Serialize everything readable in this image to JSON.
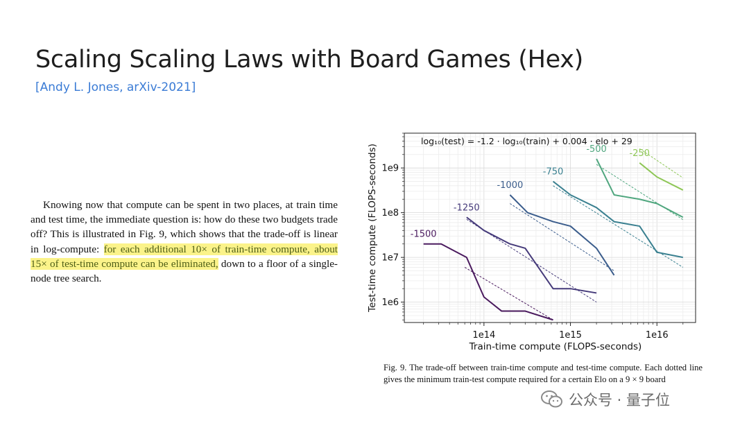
{
  "slide": {
    "title": "Scaling Scaling Laws with Board Games (Hex)",
    "citation": "[Andy L. Jones, arXiv-2021]",
    "paragraph": {
      "before": "Knowing now that compute can be spent in two places, at train time and test time, the immediate question is: how do these two budgets trade off? This is illustrated in Fig. 9, which shows that the trade-off is linear in log-compute: ",
      "highlight": "for each additional 10× of train-time compute, about 15× of test-time compute can be eliminated,",
      "after": " down to a floor of a single-node tree search."
    },
    "caption": "Fig. 9.  The trade-off between train-time compute and test-time compute. Each dotted line gives the minimum train-test compute required for a certain Elo on a 9 × 9 board",
    "watermark": "公众号 · 量子位"
  },
  "chart_data": {
    "type": "line",
    "title": "",
    "annotation": "log₁₀(test) = -1.2 · log₁₀(train) + 0.004 · elo + 29",
    "xlabel": "Train-time compute (FLOPS-seconds)",
    "ylabel": "Test-time compute (FLOPS-seconds)",
    "x_scale": "log",
    "y_scale": "log",
    "xlim": [
      12000000000000.0,
      2.8e+16
    ],
    "ylim": [
      350000.0,
      6000000000.0
    ],
    "x_ticks": [
      {
        "value": 100000000000000.0,
        "label": "1e14"
      },
      {
        "value": 1000000000000000.0,
        "label": "1e15"
      },
      {
        "value": 1e+16,
        "label": "1e16"
      }
    ],
    "y_ticks": [
      {
        "value": 1000000.0,
        "label": "1e6"
      },
      {
        "value": 10000000.0,
        "label": "1e7"
      },
      {
        "value": 100000000.0,
        "label": "1e8"
      },
      {
        "value": 1000000000.0,
        "label": "1e9"
      }
    ],
    "grid": true,
    "series": [
      {
        "name": "-1500",
        "color": "#4a1a5e",
        "points": [
          [
            20000000000000.0,
            20000000.0
          ],
          [
            32000000000000.0,
            20000000.0
          ],
          [
            63000000000000.0,
            10000000.0
          ],
          [
            100000000000000.0,
            1300000.0
          ],
          [
            160000000000000.0,
            630000.0
          ],
          [
            300000000000000.0,
            630000.0
          ],
          [
            630000000000000.0,
            400000.0
          ]
        ],
        "fit": [
          [
            60000000000000.0,
            6000000.0
          ],
          [
            630000000000000.0,
            400000.0
          ]
        ]
      },
      {
        "name": "-1250",
        "color": "#453a7a",
        "points": [
          [
            63000000000000.0,
            79000000.0
          ],
          [
            100000000000000.0,
            40000000.0
          ],
          [
            200000000000000.0,
            20000000.0
          ],
          [
            300000000000000.0,
            16000000.0
          ],
          [
            630000000000000.0,
            2000000.0
          ],
          [
            1000000000000000.0,
            2000000.0
          ],
          [
            2000000000000000.0,
            1600000.0
          ]
        ],
        "fit": [
          [
            63000000000000.0,
            71000000.0
          ],
          [
            2000000000000000.0,
            1000000.0
          ]
        ]
      },
      {
        "name": "-1000",
        "color": "#3b5d8c",
        "points": [
          [
            200000000000000.0,
            250000000.0
          ],
          [
            320000000000000.0,
            100000000.0
          ],
          [
            630000000000000.0,
            63000000.0
          ],
          [
            1000000000000000.0,
            50000000.0
          ],
          [
            2000000000000000.0,
            16000000.0
          ],
          [
            3200000000000000.0,
            4000000.0
          ]
        ],
        "fit": [
          [
            200000000000000.0,
            160000000.0
          ],
          [
            3200000000000000.0,
            5000000.0
          ]
        ]
      },
      {
        "name": "-750",
        "color": "#3a8090",
        "points": [
          [
            630000000000000.0,
            500000000.0
          ],
          [
            1000000000000000.0,
            250000000.0
          ],
          [
            2000000000000000.0,
            130000000.0
          ],
          [
            3200000000000000.0,
            63000000.0
          ],
          [
            6300000000000000.0,
            50000000.0
          ],
          [
            1e+16,
            13000000.0
          ],
          [
            2e+16,
            10000000.0
          ]
        ],
        "fit": [
          [
            630000000000000.0,
            400000000.0
          ],
          [
            2e+16,
            6000000.0
          ]
        ]
      },
      {
        "name": "-500",
        "color": "#4fa67e",
        "points": [
          [
            2000000000000000.0,
            1600000000.0
          ],
          [
            3200000000000000.0,
            250000000.0
          ],
          [
            6300000000000000.0,
            200000000.0
          ],
          [
            1e+16,
            160000000.0
          ],
          [
            2e+16,
            79000000.0
          ]
        ],
        "fit": [
          [
            2000000000000000.0,
            1200000000.0
          ],
          [
            2e+16,
            70000000.0
          ]
        ]
      },
      {
        "name": "-250",
        "color": "#8ec656",
        "points": [
          [
            6300000000000000.0,
            1300000000.0
          ],
          [
            1e+16,
            630000000.0
          ],
          [
            2e+16,
            320000000.0
          ]
        ],
        "fit": [
          [
            6300000000000000.0,
            2700000000.0
          ],
          [
            2e+16,
            600000000.0
          ]
        ]
      }
    ]
  }
}
